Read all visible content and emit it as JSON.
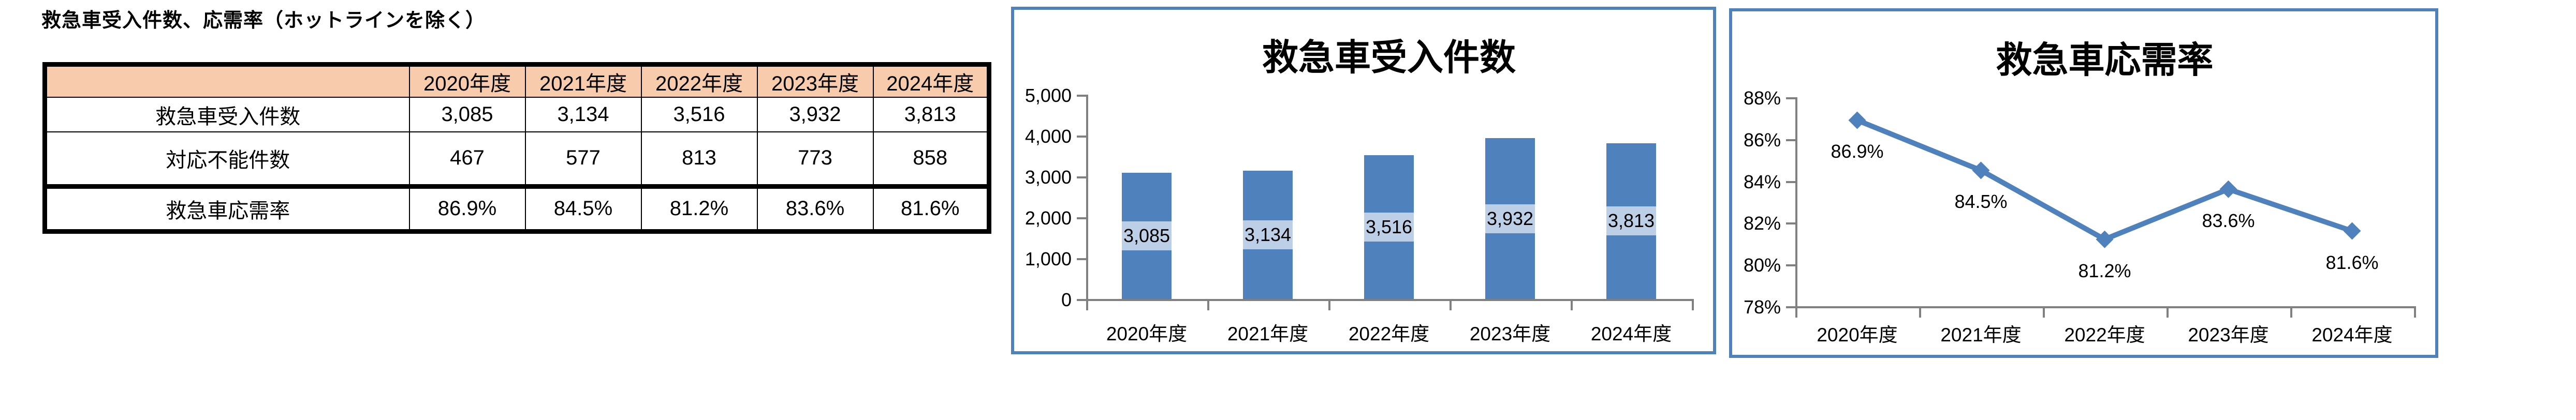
{
  "page_title": "救急車受入件数、応需率（ホットラインを除く）",
  "colors": {
    "accent_blue": "#4F81BD",
    "panel_border": "#4F81BD",
    "axis_gray": "#808080",
    "table_header_bg": "#F8CBAD",
    "text": "#000000"
  },
  "table": {
    "header": [
      "",
      "2020年度",
      "2021年度",
      "2022年度",
      "2023年度",
      "2024年度"
    ],
    "rows": [
      {
        "label": "救急車受入件数",
        "values": [
          "3,085",
          "3,134",
          "3,516",
          "3,932",
          "3,813"
        ],
        "thick_top": false
      },
      {
        "label": "対応不能件数",
        "values": [
          "467",
          "577",
          "813",
          "773",
          "858"
        ],
        "thick_top": false
      },
      {
        "label": "救急車応需率",
        "values": [
          "86.9%",
          "84.5%",
          "81.2%",
          "83.6%",
          "81.6%"
        ],
        "thick_top": true
      }
    ]
  },
  "chart_data": [
    {
      "type": "bar",
      "title": "救急車受入件数",
      "categories": [
        "2020年度",
        "2021年度",
        "2022年度",
        "2023年度",
        "2024年度"
      ],
      "values": [
        3085,
        3134,
        3516,
        3932,
        3813
      ],
      "data_labels": [
        "3,085",
        "3,134",
        "3,516",
        "3,932",
        "3,813"
      ],
      "ylim": [
        0,
        5000
      ],
      "y_tick_values": [
        0,
        1000,
        2000,
        3000,
        4000,
        5000
      ],
      "y_tick_labels": [
        "0",
        "1,000",
        "2,000",
        "3,000",
        "4,000",
        "5,000"
      ],
      "xlabel": "",
      "ylabel": "",
      "grid": false,
      "legend": "none",
      "bar_color": "#4F81BD"
    },
    {
      "type": "line",
      "title": "救急車応需率",
      "categories": [
        "2020年度",
        "2021年度",
        "2022年度",
        "2023年度",
        "2024年度"
      ],
      "values": [
        86.9,
        84.5,
        81.2,
        83.6,
        81.6
      ],
      "data_labels": [
        "86.9%",
        "84.5%",
        "81.2%",
        "83.6%",
        "81.6%"
      ],
      "ylim": [
        78,
        88
      ],
      "y_tick_values": [
        78,
        80,
        82,
        84,
        86,
        88
      ],
      "y_tick_labels": [
        "78%",
        "80%",
        "82%",
        "84%",
        "86%",
        "88%"
      ],
      "xlabel": "",
      "ylabel": "",
      "grid": false,
      "legend": "none",
      "marker": "diamond",
      "line_color": "#4F81BD"
    }
  ]
}
